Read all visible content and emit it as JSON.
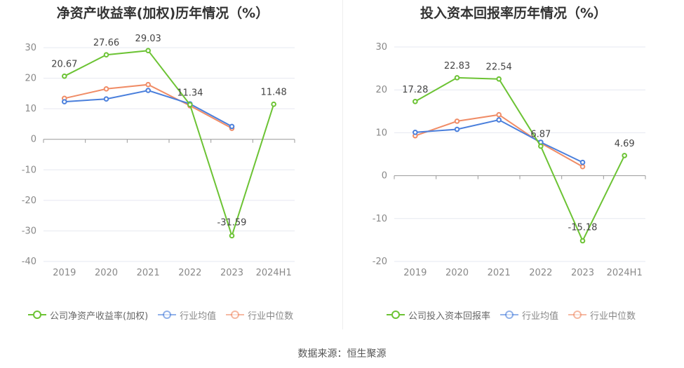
{
  "source": "数据来源：恒生聚源",
  "colors": {
    "company": "#6cc334",
    "average": "#4a7fdc",
    "median": "#f08c66",
    "grid": "#e6e8f0",
    "axis": "#999999",
    "tick_label": "#888888",
    "value_label": "#444444"
  },
  "chart_data": [
    {
      "type": "line",
      "title": "净资产收益率(加权)历年情况（%）",
      "categories": [
        "2019",
        "2020",
        "2021",
        "2022",
        "2023",
        "2024H1"
      ],
      "ylim": [
        -40,
        30
      ],
      "yticks": [
        30,
        20,
        10,
        0,
        -10,
        -20,
        -30,
        -40
      ],
      "grid": true,
      "legend_position": "bottom",
      "series": [
        {
          "name": "公司净资产收益率(加权)",
          "color_key": "company",
          "values": [
            20.67,
            27.66,
            29.03,
            11.34,
            -31.59,
            11.48
          ],
          "labels": [
            "20.67",
            "27.66",
            "29.03",
            "11.34",
            "-31.59",
            "11.48"
          ]
        },
        {
          "name": "行业均值",
          "color_key": "average",
          "values": [
            12.3,
            13.2,
            16.0,
            11.6,
            4.2,
            null
          ]
        },
        {
          "name": "行业中位数",
          "color_key": "median",
          "values": [
            13.4,
            16.5,
            17.9,
            11.0,
            3.6,
            null
          ]
        }
      ]
    },
    {
      "type": "line",
      "title": "投入资本回报率历年情况（%）",
      "categories": [
        "2019",
        "2020",
        "2021",
        "2022",
        "2023",
        "2024H1"
      ],
      "ylim": [
        -20,
        30
      ],
      "yticks": [
        30,
        20,
        10,
        0,
        -10,
        -20
      ],
      "grid": true,
      "legend_position": "bottom",
      "series": [
        {
          "name": "公司投入资本回报率",
          "color_key": "company",
          "values": [
            17.28,
            22.83,
            22.54,
            6.87,
            -15.18,
            4.69
          ],
          "labels": [
            "17.28",
            "22.83",
            "22.54",
            "6.87",
            "-15.18",
            "4.69"
          ]
        },
        {
          "name": "行业均值",
          "color_key": "average",
          "values": [
            10.1,
            10.8,
            13.0,
            7.8,
            3.1,
            null
          ]
        },
        {
          "name": "行业中位数",
          "color_key": "median",
          "values": [
            9.3,
            12.7,
            14.2,
            7.6,
            2.1,
            null
          ]
        }
      ]
    }
  ]
}
